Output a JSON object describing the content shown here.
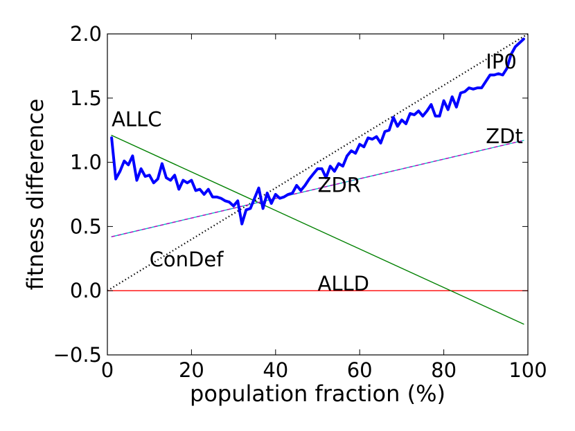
{
  "chart_data": {
    "type": "line",
    "xlabel": "population fraction (%)",
    "ylabel": "fitness difference",
    "xlim": [
      0,
      100
    ],
    "ylim": [
      -0.5,
      2.0
    ],
    "xticks": [
      0,
      20,
      40,
      60,
      80,
      100
    ],
    "yticks": [
      -0.5,
      0.0,
      0.5,
      1.0,
      1.5,
      2.0
    ],
    "xtick_labels": [
      "0",
      "20",
      "40",
      "60",
      "80",
      "100"
    ],
    "ytick_labels": [
      "−0.5",
      "0.0",
      "0.5",
      "1.0",
      "1.5",
      "2.0"
    ],
    "grid": false,
    "series": [
      {
        "name": "ALLD",
        "color": "#ff0000",
        "style": "solid",
        "x": [
          0,
          100
        ],
        "y": [
          0,
          0
        ]
      },
      {
        "name": "ALLC",
        "color": "#008000",
        "style": "solid",
        "x": [
          1,
          99
        ],
        "y": [
          1.21,
          -0.26
        ]
      },
      {
        "name": "ConDef",
        "color": "#000000",
        "style": "dotted",
        "x": [
          0,
          100
        ],
        "y": [
          0,
          2.0
        ]
      },
      {
        "name": "ZDt",
        "color": "#00bfbf",
        "style": "solid",
        "x": [
          1,
          99
        ],
        "y": [
          0.42,
          1.17
        ]
      },
      {
        "name": "ZDR",
        "color": "#bf00bf",
        "style": "dashed",
        "x": [
          1,
          99
        ],
        "y": [
          0.42,
          1.17
        ]
      },
      {
        "name": "IP0",
        "color": "#0000ff",
        "style": "thick",
        "x": [
          1,
          2,
          3,
          4,
          5,
          6,
          7,
          8,
          9,
          10,
          11,
          12,
          13,
          14,
          15,
          16,
          17,
          18,
          19,
          20,
          21,
          22,
          23,
          24,
          25,
          26,
          27,
          28,
          29,
          30,
          31,
          32,
          33,
          34,
          35,
          36,
          37,
          38,
          39,
          40,
          41,
          42,
          43,
          44,
          45,
          46,
          47,
          48,
          49,
          50,
          51,
          52,
          53,
          54,
          55,
          56,
          57,
          58,
          59,
          60,
          61,
          62,
          63,
          64,
          65,
          66,
          67,
          68,
          69,
          70,
          71,
          72,
          73,
          74,
          75,
          76,
          77,
          78,
          79,
          80,
          81,
          82,
          83,
          84,
          85,
          86,
          87,
          88,
          89,
          90,
          91,
          92,
          93,
          94,
          95,
          96,
          97,
          98,
          99
        ],
        "y": [
          1.19,
          0.87,
          0.93,
          1.01,
          0.98,
          1.05,
          0.86,
          0.95,
          0.89,
          0.9,
          0.84,
          0.87,
          0.99,
          0.88,
          0.86,
          0.9,
          0.79,
          0.86,
          0.84,
          0.86,
          0.78,
          0.79,
          0.75,
          0.79,
          0.73,
          0.73,
          0.72,
          0.7,
          0.69,
          0.66,
          0.7,
          0.52,
          0.63,
          0.64,
          0.72,
          0.8,
          0.64,
          0.76,
          0.68,
          0.75,
          0.72,
          0.73,
          0.75,
          0.76,
          0.82,
          0.78,
          0.82,
          0.87,
          0.91,
          0.95,
          0.95,
          0.88,
          0.97,
          0.93,
          0.99,
          0.97,
          1.05,
          1.09,
          1.07,
          1.14,
          1.12,
          1.19,
          1.18,
          1.2,
          1.15,
          1.24,
          1.25,
          1.35,
          1.28,
          1.33,
          1.3,
          1.38,
          1.37,
          1.4,
          1.36,
          1.4,
          1.45,
          1.36,
          1.36,
          1.48,
          1.41,
          1.51,
          1.43,
          1.54,
          1.55,
          1.58,
          1.57,
          1.58,
          1.58,
          1.63,
          1.68,
          1.68,
          1.69,
          1.68,
          1.73,
          1.84,
          1.9,
          1.93,
          1.96
        ]
      }
    ],
    "annotations": [
      {
        "text": "ALLC",
        "x": 1,
        "y": 1.28
      },
      {
        "text": "ZDt",
        "x": 90,
        "y": 1.15
      },
      {
        "text": "IP0",
        "x": 90,
        "y": 1.73
      },
      {
        "text": "ZDR",
        "x": 50,
        "y": 0.77
      },
      {
        "text": "ConDef",
        "x": 10,
        "y": 0.19
      },
      {
        "text": "ALLD",
        "x": 50,
        "y": 0.0
      }
    ]
  }
}
